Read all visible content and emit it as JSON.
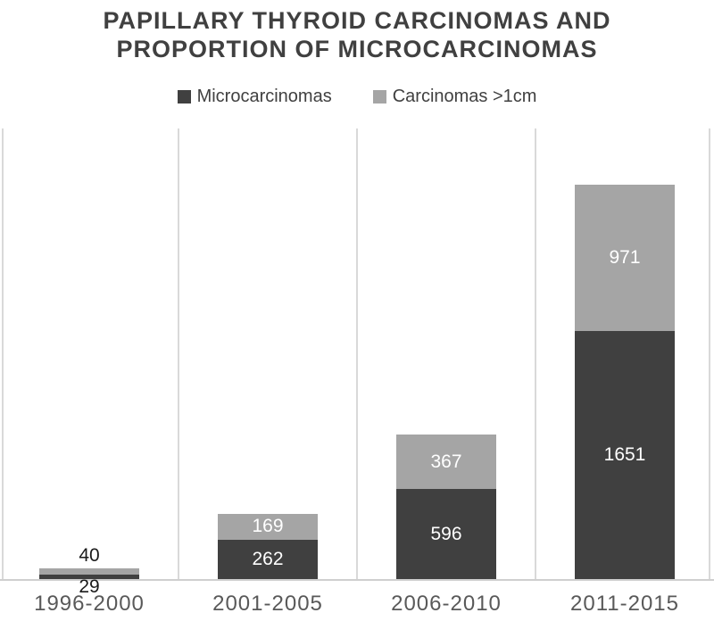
{
  "title": {
    "line1": "PAPILLARY THYROID CARCINOMAS AND",
    "line2": "PROPORTION OF MICROCARCINOMAS"
  },
  "colors": {
    "microcarcinomas": "#404040",
    "carcinomas_gt_1cm": "#a5a5a5",
    "gridline": "#d9d9d9",
    "axis_line": "#cfcfcf",
    "title_text": "#404040",
    "category_text": "#595959",
    "inside_label_text": "#ffffff",
    "outside_label_text": "#1a1a1a"
  },
  "chart_data": {
    "type": "bar",
    "stacked": true,
    "title": "PAPILLARY THYROID CARCINOMAS AND PROPORTION OF MICROCARCINOMAS",
    "categories": [
      "1996-2000",
      "2001-2005",
      "2006-2010",
      "2011-2015"
    ],
    "series": [
      {
        "name": "Microcarcinomas",
        "color": "#404040",
        "values": [
          29,
          262,
          596,
          1651
        ]
      },
      {
        "name": "Carcinomas >1cm",
        "color": "#a5a5a5",
        "values": [
          40,
          169,
          367,
          971
        ]
      }
    ],
    "totals": [
      69,
      431,
      963,
      2622
    ],
    "xlabel": "",
    "ylabel": "",
    "ylim": [
      0,
      3000
    ],
    "y_axis_labels_shown": false,
    "grid": "vertical category separator lines only",
    "legend_position": "top-center",
    "data_labels": "values shown on each segment; white inside large segments, black outside (above/below) for the small 1996-2000 segments"
  }
}
